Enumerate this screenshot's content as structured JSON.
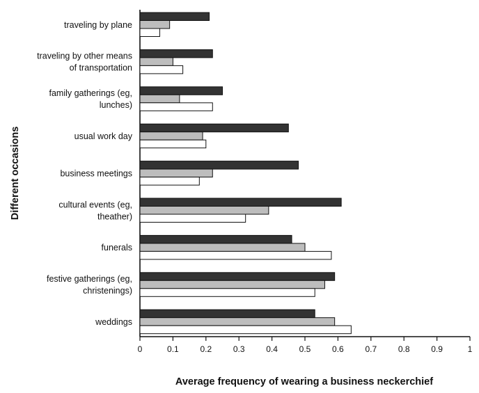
{
  "chart_data": {
    "type": "bar",
    "orientation": "horizontal",
    "ylabel": "Different occasions",
    "xlabel": "Average frequency of wearing a business neckerchief",
    "xlim": [
      0,
      1
    ],
    "xticks": [
      "0",
      "0.1",
      "0.2",
      "0.3",
      "0.4",
      "0.5",
      "0.6",
      "0.7",
      "0.8",
      "0.9",
      "1"
    ],
    "categories": [
      [
        "traveling by plane"
      ],
      [
        "traveling by other means",
        "of transportation"
      ],
      [
        "family gatherings (eg,",
        "lunches)"
      ],
      [
        "usual work day"
      ],
      [
        "business meetings"
      ],
      [
        "cultural events (eg,",
        "theather)"
      ],
      [
        "funerals"
      ],
      [
        "festive gatherings (eg,",
        "christenings)"
      ],
      [
        "weddings"
      ]
    ],
    "series": [
      {
        "color": "#333333",
        "values": [
          0.21,
          0.22,
          0.25,
          0.45,
          0.48,
          0.61,
          0.46,
          0.59,
          0.53
        ]
      },
      {
        "color": "#bdbdbd",
        "values": [
          0.09,
          0.1,
          0.12,
          0.19,
          0.22,
          0.39,
          0.5,
          0.56,
          0.59
        ]
      },
      {
        "color": "#ffffff",
        "values": [
          0.06,
          0.13,
          0.22,
          0.2,
          0.18,
          0.32,
          0.58,
          0.53,
          0.64
        ]
      }
    ],
    "grid": false,
    "legend": "none"
  }
}
